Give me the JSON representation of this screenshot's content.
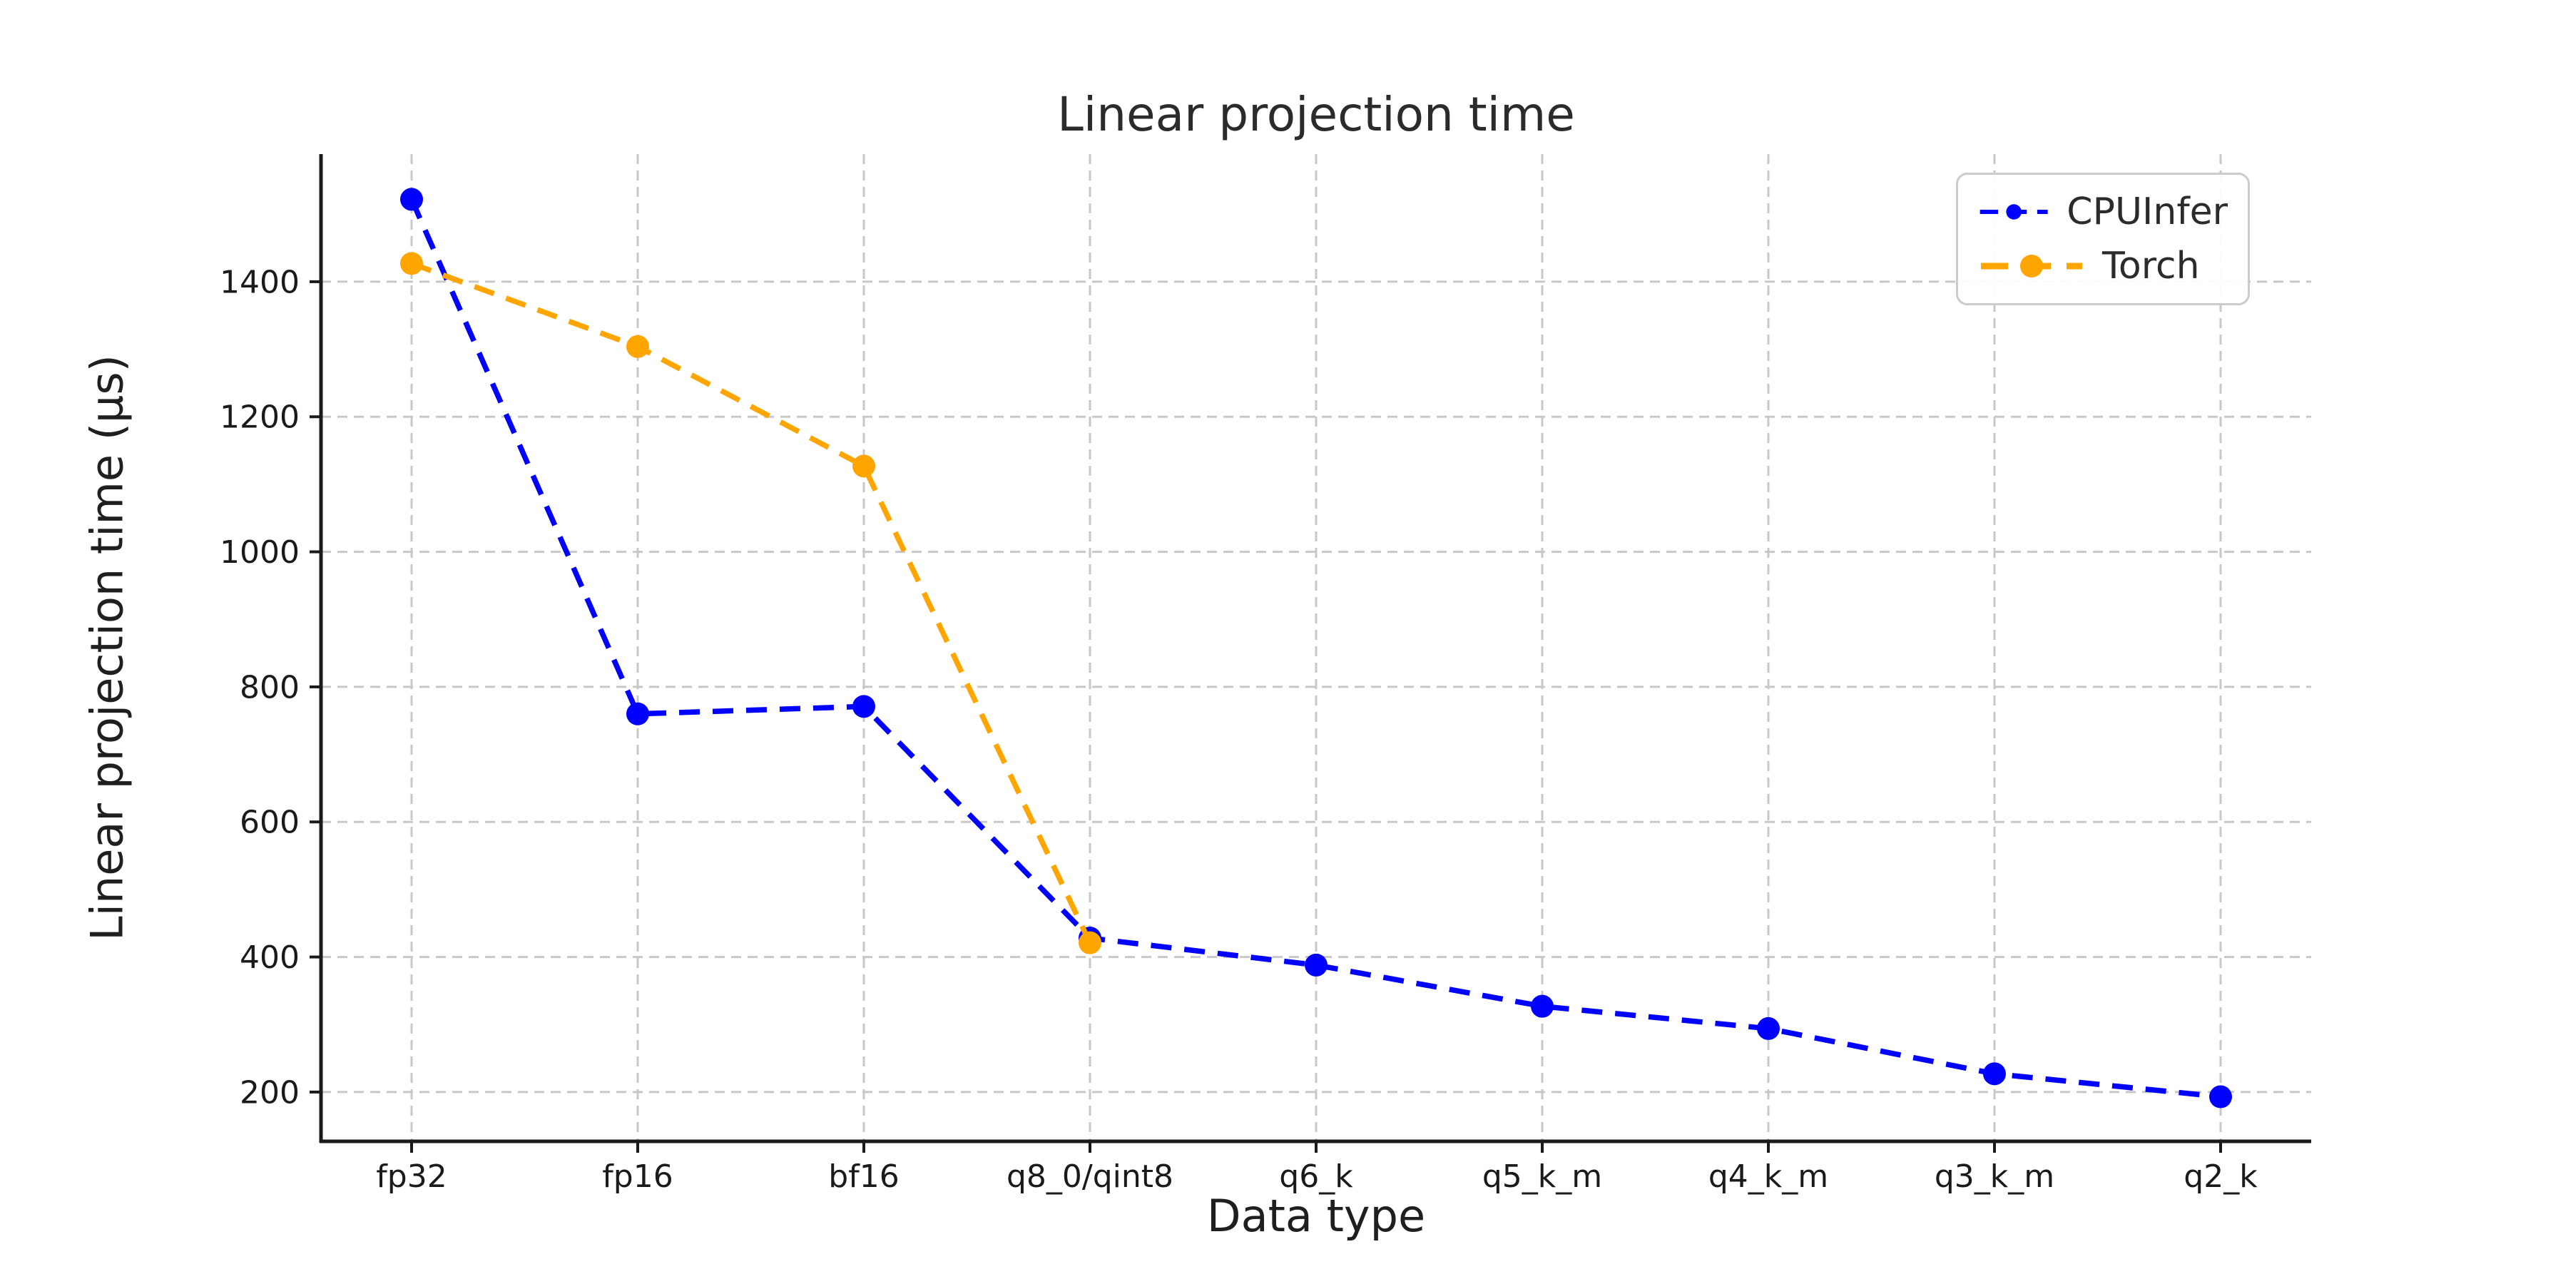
{
  "chart_data": {
    "type": "line",
    "title": "Linear projection time",
    "xlabel": "Data type",
    "ylabel": "Linear projection time (µs)",
    "categories": [
      "fp32",
      "fp16",
      "bf16",
      "q8_0/qint8",
      "q6_k",
      "q5_k_m",
      "q4_k_m",
      "q3_k_m",
      "q2_k"
    ],
    "series": [
      {
        "name": "CPUInfer",
        "color": "#0000ff",
        "line_style": "dashed",
        "marker": "circle",
        "values": [
          1522,
          760,
          771,
          428,
          388,
          327,
          294,
          227,
          193
        ]
      },
      {
        "name": "Torch",
        "color": "#ffa500",
        "line_style": "dashed",
        "marker": "circle",
        "values": [
          1427,
          1304,
          1127,
          421
        ]
      }
    ],
    "yticks": [
      200,
      400,
      600,
      800,
      1000,
      1200,
      1400
    ],
    "ylim": [
      127,
      1589
    ],
    "grid": true,
    "grid_style": "dashed",
    "legend_position": "upper right",
    "colors": {
      "background": "#ffffff",
      "grid": "#c8c8c8",
      "spine": "#1a1a1a",
      "tick_label": "#1a1a1a",
      "title_text": "#2b2b2b"
    }
  }
}
